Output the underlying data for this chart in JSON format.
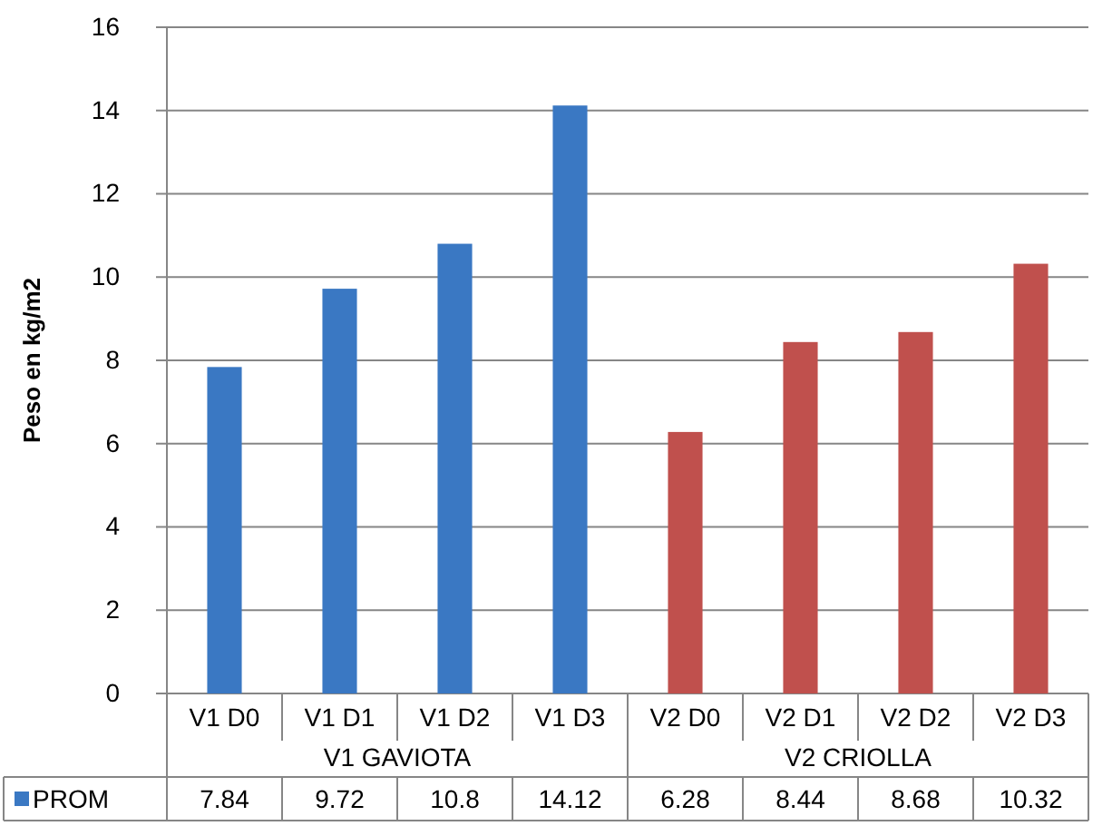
{
  "chart_data": {
    "type": "bar",
    "ylabel": "Peso en kg/m2",
    "categories": [
      "V1 D0",
      "V1 D1",
      "V1 D2",
      "V1 D3",
      "V2 D0",
      "V2 D1",
      "V2 D2",
      "V2 D3"
    ],
    "series": [
      {
        "name": "PROM",
        "color": "#3a78c3",
        "colors": [
          "#3a78c3",
          "#3a78c3",
          "#3a78c3",
          "#3a78c3",
          "#c0504d",
          "#c0504d",
          "#c0504d",
          "#c0504d"
        ],
        "values": [
          7.84,
          9.72,
          10.8,
          14.12,
          6.28,
          8.44,
          8.68,
          10.32
        ]
      }
    ],
    "annotations": [
      "V1 GAVIOTA",
      "V2 CRIOLLA"
    ],
    "ylim": [
      0,
      16
    ],
    "yticks": [
      0,
      2,
      4,
      6,
      8,
      10,
      12,
      14,
      16
    ],
    "grid": "y",
    "data_labels": true,
    "legend": "bottom"
  }
}
